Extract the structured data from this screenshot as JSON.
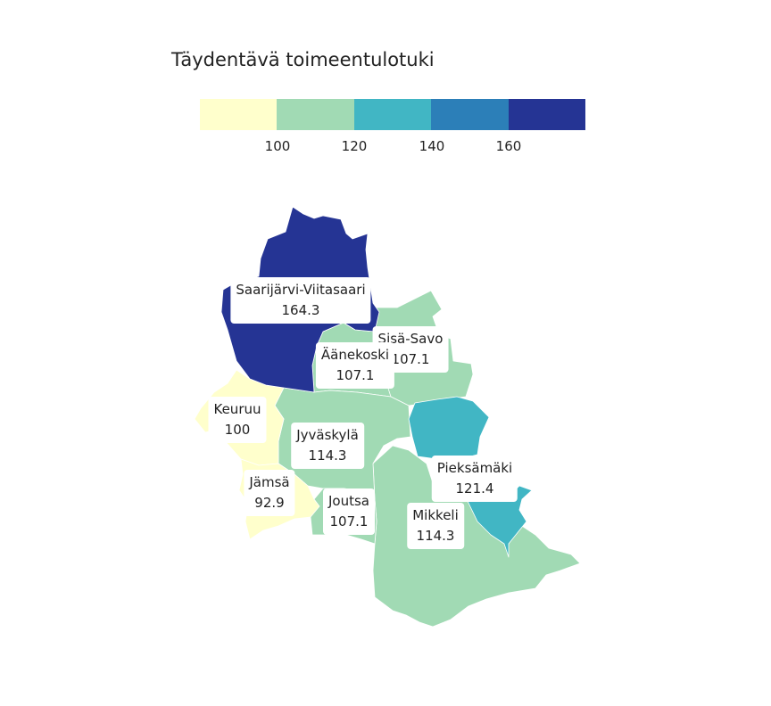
{
  "title": "Täydentävä toimeentulotuki",
  "legend": {
    "colors": [
      "#ffffcc",
      "#a1dab4",
      "#41b6c4",
      "#2c7fb8",
      "#253494"
    ],
    "ticks": [
      "100",
      "120",
      "140",
      "160"
    ]
  },
  "regions": [
    {
      "name": "Saarijärvi-Viitasaari",
      "value": "164.3",
      "color": "#253494"
    },
    {
      "name": "Sisä-Savo",
      "value": "107.1",
      "color": "#a1dab4"
    },
    {
      "name": "Äänekoski",
      "value": "107.1",
      "color": "#a1dab4"
    },
    {
      "name": "Keuruu",
      "value": "100",
      "color": "#ffffcc"
    },
    {
      "name": "Jyväskylä",
      "value": "114.3",
      "color": "#a1dab4"
    },
    {
      "name": "Pieksämäki",
      "value": "121.4",
      "color": "#41b6c4"
    },
    {
      "name": "Jämsä",
      "value": "92.9",
      "color": "#ffffcc"
    },
    {
      "name": "Joutsa",
      "value": "107.1",
      "color": "#a1dab4"
    },
    {
      "name": "Mikkeli",
      "value": "114.3",
      "color": "#a1dab4"
    }
  ]
}
